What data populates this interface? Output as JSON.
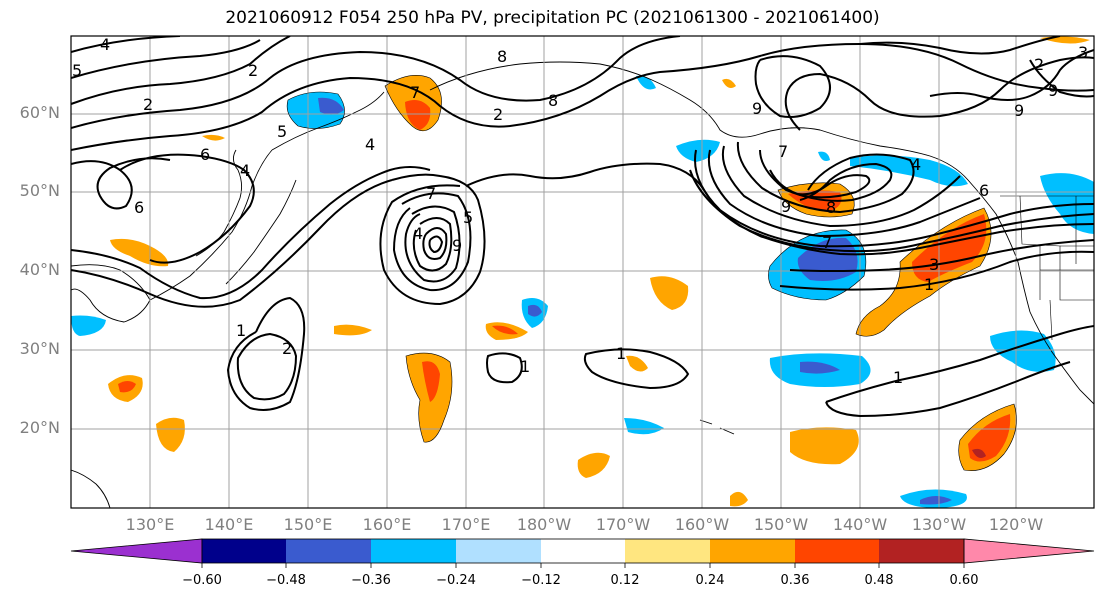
{
  "title": "2021060912 F054 250 hPa PV, precipitation PC (2021061300 - 2021061400)",
  "lat_labels": [
    "60°N",
    "50°N",
    "40°N",
    "30°N",
    "20°N"
  ],
  "lon_labels": [
    "130°E",
    "140°E",
    "150°E",
    "160°E",
    "170°E",
    "180°W",
    "170°W",
    "160°W",
    "150°W",
    "140°W",
    "130°W",
    "120°W"
  ],
  "colorbar": {
    "ticks": [
      "−0.60",
      "−0.48",
      "−0.36",
      "−0.24",
      "−0.12",
      "0.12",
      "0.24",
      "0.36",
      "0.48",
      "0.60"
    ],
    "colors": [
      "#9b30d0",
      "#00008b",
      "#3a5bcf",
      "#00bfff",
      "#b0e0ff",
      "#ffffff",
      "#ffe680",
      "#ffa500",
      "#ff4500",
      "#b22222",
      "#ff88aa"
    ]
  },
  "contour_labels": [
    "4",
    "2",
    "5",
    "6",
    "4",
    "8",
    "8",
    "2",
    "7",
    "4",
    "9",
    "7",
    "5",
    "9",
    "7",
    "9",
    "8",
    "4",
    "6",
    "3",
    "7",
    "1",
    "2",
    "1",
    "1",
    "9",
    "9",
    "4",
    "6",
    "2",
    "1",
    "1",
    "3",
    "2",
    "5"
  ],
  "colors": {
    "positive": "#ffa500",
    "strong_positive": "#ff4500",
    "negative": "#00bfff",
    "strong_negative": "#3a5bcf"
  }
}
